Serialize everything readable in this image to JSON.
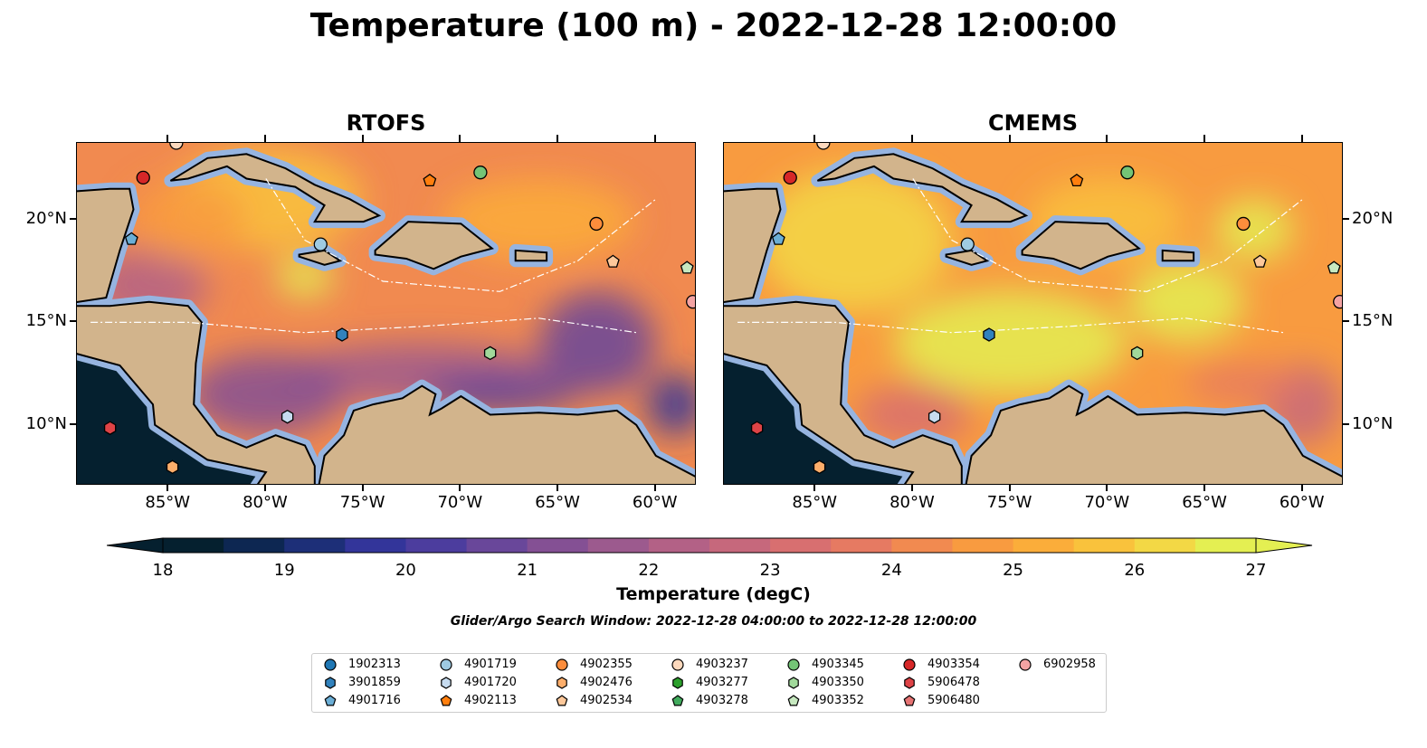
{
  "title": "Temperature (100 m) - 2022-12-28 12:00:00",
  "panels": [
    {
      "title": "RTOFS",
      "style": "rtofs"
    },
    {
      "title": "CMEMS",
      "style": "cmems"
    }
  ],
  "map_extent": {
    "lon": [
      -89.7,
      -57.9
    ],
    "lat": [
      7.04,
      23.74
    ]
  },
  "lon_ticks": [
    {
      "value": -85,
      "label": "85°W"
    },
    {
      "value": -80,
      "label": "80°W"
    },
    {
      "value": -75,
      "label": "75°W"
    },
    {
      "value": -70,
      "label": "70°W"
    },
    {
      "value": -65,
      "label": "65°W"
    },
    {
      "value": -60,
      "label": "60°W"
    }
  ],
  "lat_ticks": [
    {
      "value": 20,
      "label": "20°N"
    },
    {
      "value": 15,
      "label": "15°N"
    },
    {
      "value": 10,
      "label": "10°N"
    }
  ],
  "colorbar": {
    "label": "Temperature (degC)",
    "min": 18,
    "max": 27,
    "ticks": [
      "18",
      "19",
      "20",
      "21",
      "22",
      "23",
      "24",
      "25",
      "26",
      "27"
    ],
    "colors": [
      "#05202f",
      "#0d2752",
      "#1d2f78",
      "#33359a",
      "#4c3d9e",
      "#69479a",
      "#845094",
      "#9c5a8e",
      "#b36186",
      "#c6687c",
      "#d86f70",
      "#e67a62",
      "#f18a50",
      "#f89b40",
      "#fbad3a",
      "#f9c23c",
      "#f3d845",
      "#e4ef52"
    ]
  },
  "search_window": "Glider/Argo Search Window: 2022-12-28 04:00:00 to 2022-12-28 12:00:00",
  "legend": [
    {
      "id": "1902313",
      "shape": "circle",
      "color": "#1f77b4"
    },
    {
      "id": "3901859",
      "shape": "hexagon",
      "color": "#3182bd"
    },
    {
      "id": "4901716",
      "shape": "pentagon",
      "color": "#6baed6"
    },
    {
      "id": "4901719",
      "shape": "circle",
      "color": "#9ecae1"
    },
    {
      "id": "4901720",
      "shape": "hexagon",
      "color": "#c6dbef"
    },
    {
      "id": "4902113",
      "shape": "pentagon",
      "color": "#ff7f0e"
    },
    {
      "id": "4902355",
      "shape": "circle",
      "color": "#fd8d3c"
    },
    {
      "id": "4902476",
      "shape": "hexagon",
      "color": "#fdae6b"
    },
    {
      "id": "4902534",
      "shape": "pentagon",
      "color": "#fdc89a"
    },
    {
      "id": "4903237",
      "shape": "circle",
      "color": "#fdd9bd"
    },
    {
      "id": "4903277",
      "shape": "hexagon",
      "color": "#2ca02c"
    },
    {
      "id": "4903278",
      "shape": "pentagon",
      "color": "#41ab5d"
    },
    {
      "id": "4903345",
      "shape": "circle",
      "color": "#74c476"
    },
    {
      "id": "4903350",
      "shape": "hexagon",
      "color": "#a1d99b"
    },
    {
      "id": "4903352",
      "shape": "pentagon",
      "color": "#c7e9c0"
    },
    {
      "id": "4903354",
      "shape": "circle",
      "color": "#d62728"
    },
    {
      "id": "5906478",
      "shape": "hexagon",
      "color": "#de4346"
    },
    {
      "id": "5906480",
      "shape": "pentagon",
      "color": "#e67373"
    },
    {
      "id": "6902958",
      "shape": "circle",
      "color": "#f4a3a3"
    }
  ],
  "floats": [
    {
      "id": "4903354",
      "lon": -86.3,
      "lat": 22.05
    },
    {
      "id": "4903237",
      "lon": -84.6,
      "lat": 23.74
    },
    {
      "id": "4902113",
      "lon": -71.6,
      "lat": 21.9
    },
    {
      "id": "4903345",
      "lon": -69.0,
      "lat": 22.3
    },
    {
      "id": "4901716",
      "lon": -86.9,
      "lat": 19.05
    },
    {
      "id": "4901719",
      "lon": -77.2,
      "lat": 18.8
    },
    {
      "id": "4902355",
      "lon": -63.05,
      "lat": 19.8
    },
    {
      "id": "4902534",
      "lon": -62.2,
      "lat": 17.95
    },
    {
      "id": "4903352",
      "lon": -58.4,
      "lat": 17.65
    },
    {
      "id": "6902958",
      "lon": -58.1,
      "lat": 16.0
    },
    {
      "id": "3901859",
      "lon": -76.1,
      "lat": 14.4
    },
    {
      "id": "4903350",
      "lon": -68.5,
      "lat": 13.5
    },
    {
      "id": "4901720",
      "lon": -78.9,
      "lat": 10.4
    },
    {
      "id": "5906478",
      "lon": -88.0,
      "lat": 9.85
    },
    {
      "id": "4902476",
      "lon": -84.8,
      "lat": 7.95
    }
  ]
}
